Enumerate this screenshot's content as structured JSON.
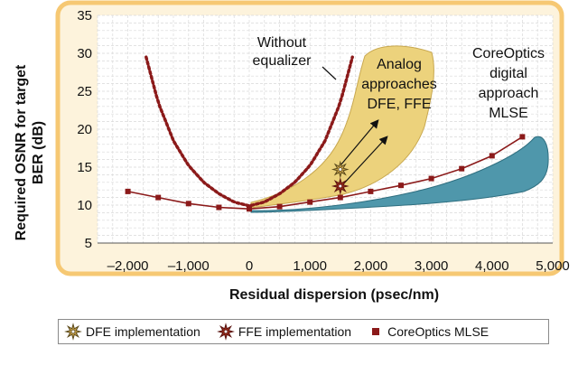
{
  "chart_data": {
    "type": "line",
    "xlabel": "Residual dispersion (psec/nm)",
    "ylabel": "Required OSNR for target BER (dB)",
    "xlim": [
      -2500,
      5000
    ],
    "ylim": [
      5,
      35
    ],
    "x_ticks": [
      -2000,
      -1000,
      0,
      1000,
      2000,
      3000,
      4000,
      5000
    ],
    "x_tick_labels": [
      "–2,000",
      "–1,000",
      "0",
      "1,000",
      "2,000",
      "3,000",
      "4,000",
      "5,000"
    ],
    "y_ticks": [
      5,
      10,
      15,
      20,
      25,
      30,
      35
    ],
    "y_tick_labels": [
      "5",
      "10",
      "15",
      "20",
      "25",
      "30",
      "35"
    ],
    "grid": true,
    "legend_position": "bottom",
    "series": [
      {
        "name": "Without equalizer",
        "style": "dotted",
        "color": "#8b1a1a",
        "x": [
          -1700,
          -1500,
          -1250,
          -1000,
          -750,
          -500,
          -250,
          0,
          250,
          500,
          750,
          1000,
          1250,
          1500,
          1700
        ],
        "y": [
          29.5,
          23.5,
          18.5,
          15.2,
          13,
          11.5,
          10.4,
          9.9,
          10.4,
          11.5,
          13,
          15.2,
          18.5,
          23.5,
          29.5
        ]
      },
      {
        "name": "CoreOptics MLSE",
        "style": "line-markers",
        "color": "#8b1a1a",
        "x": [
          -2000,
          -1500,
          -1000,
          -500,
          0,
          500,
          1000,
          1500,
          2000,
          2500,
          3000,
          3500,
          4000,
          4500
        ],
        "y": [
          11.8,
          11,
          10.2,
          9.7,
          9.5,
          9.8,
          10.4,
          11,
          11.8,
          12.6,
          13.5,
          14.8,
          16.5,
          19
        ]
      }
    ],
    "points": [
      {
        "name": "DFE implementation",
        "x": 1500,
        "y": 14.7
      },
      {
        "name": "FFE implementation",
        "x": 1500,
        "y": 12.5
      }
    ],
    "regions": [
      {
        "name": "Analog approaches DFE, FFE",
        "color": "#ecd27c"
      },
      {
        "name": "CoreOptics digital approach MLSE",
        "color": "#4f97ab"
      }
    ],
    "annotations": [
      "Without equalizer",
      "Analog approaches DFE, FFE",
      "CoreOptics digital approach MLSE"
    ],
    "annotation_lines": {
      "without": [
        "Without",
        "equalizer"
      ],
      "analog": [
        "Analog",
        "approaches",
        "DFE, FFE"
      ],
      "coreoptics": [
        "CoreOptics",
        "digital",
        "approach",
        "MLSE"
      ]
    }
  },
  "legend": {
    "dfe_label": "DFE implementation",
    "ffe_label": "FFE implementation",
    "mlse_label": "CoreOptics MLSE"
  },
  "colors": {
    "panel_bg": "#fdf3dc",
    "panel_border": "#f6c873",
    "plot_bg": "#ffffff",
    "grid": "#d9d9d9",
    "series_red": "#8b1a1a",
    "analog_fill": "#ecd27c",
    "digital_fill": "#4f97ab"
  }
}
